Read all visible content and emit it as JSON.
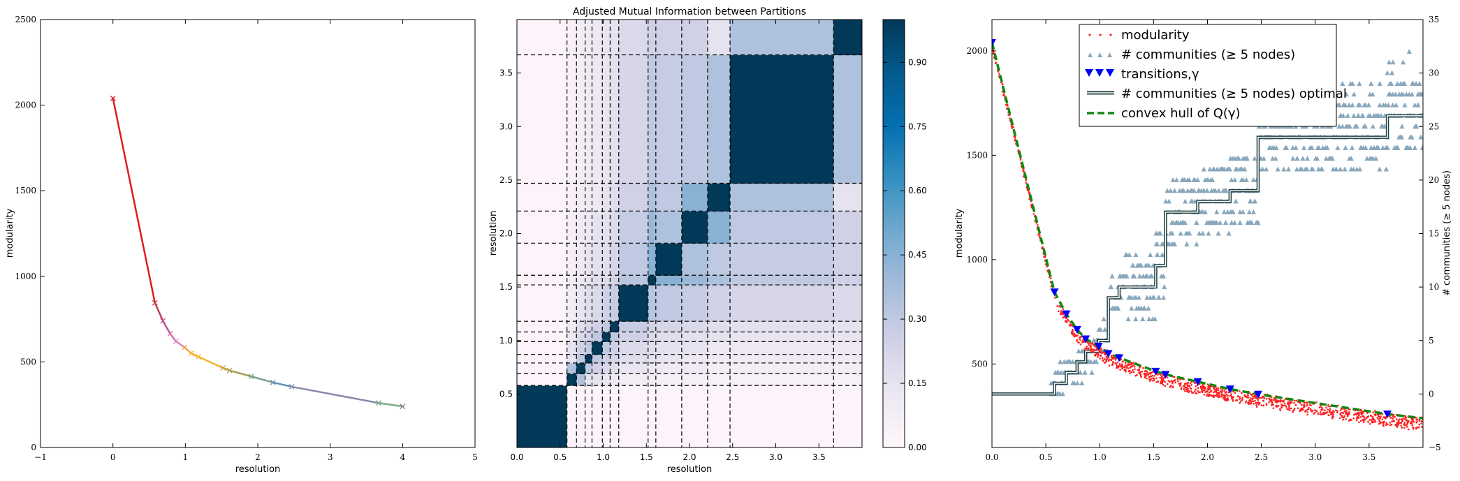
{
  "chart_data": [
    {
      "type": "line",
      "xlabel": "resolution",
      "ylabel": "modularity",
      "xlim": [
        -1,
        5
      ],
      "ylim": [
        0,
        2500
      ],
      "xticks": [
        "−1",
        "0",
        "1",
        "2",
        "3",
        "4",
        "5"
      ],
      "yticks": [
        "0",
        "500",
        "1000",
        "1500",
        "2000",
        "2500"
      ],
      "grid": false,
      "points": [
        {
          "x": 0.0,
          "y": 2040
        },
        {
          "x": 0.58,
          "y": 845
        },
        {
          "x": 0.69,
          "y": 740
        },
        {
          "x": 0.79,
          "y": 665
        },
        {
          "x": 0.87,
          "y": 620
        },
        {
          "x": 0.99,
          "y": 585
        },
        {
          "x": 1.08,
          "y": 550
        },
        {
          "x": 1.18,
          "y": 530
        },
        {
          "x": 1.52,
          "y": 465
        },
        {
          "x": 1.61,
          "y": 450
        },
        {
          "x": 1.91,
          "y": 415
        },
        {
          "x": 2.21,
          "y": 380
        },
        {
          "x": 2.47,
          "y": 355
        },
        {
          "x": 3.67,
          "y": 260
        },
        {
          "x": 4.0,
          "y": 240
        }
      ],
      "colors": [
        "#e41a1c",
        "#c43d5a",
        "#b5548f",
        "#d46fb2",
        "#e284c0",
        "#f1a23d",
        "#ffb02b",
        "#f0b431",
        "#c9a14a",
        "#a99b56",
        "#7f9e8a",
        "#5e8fb0",
        "#8a88a8",
        "#7aab84",
        "#8e6f8c"
      ]
    },
    {
      "type": "heatmap",
      "title": "Adjusted Mutual Information between Partitions",
      "xlabel": "resolution",
      "ylabel": "resolution",
      "xlim": [
        0,
        4
      ],
      "ylim": [
        0,
        4
      ],
      "xticks": [
        "0.0",
        "0.5",
        "1.0",
        "1.5",
        "2.0",
        "2.5",
        "3.0",
        "3.5"
      ],
      "yticks": [
        "0.5",
        "1.0",
        "1.5",
        "2.0",
        "2.5",
        "3.0",
        "3.5"
      ],
      "colorbar_ticks": [
        "0.00",
        "0.15",
        "0.30",
        "0.45",
        "0.60",
        "0.75",
        "0.90"
      ],
      "colorbar_range": [
        0,
        1
      ],
      "boundaries": [
        0,
        0.58,
        0.69,
        0.79,
        0.87,
        0.99,
        1.08,
        1.18,
        1.52,
        1.61,
        1.91,
        2.21,
        2.47,
        3.67,
        4.0
      ],
      "dashed_lines": [
        0.58,
        0.69,
        0.79,
        0.87,
        0.99,
        1.08,
        1.18,
        1.52,
        1.61,
        1.91,
        2.21,
        2.47,
        3.67
      ],
      "matrix": [
        [
          1.0,
          0.02,
          0.02,
          0.02,
          0.02,
          0.02,
          0.02,
          0.02,
          0.02,
          0.02,
          0.02,
          0.02,
          0.02,
          0.02
        ],
        [
          0.02,
          1.0,
          0.35,
          0.15,
          0.15,
          0.12,
          0.1,
          0.08,
          0.08,
          0.06,
          0.06,
          0.05,
          0.05,
          0.05
        ],
        [
          0.02,
          0.35,
          1.0,
          0.3,
          0.25,
          0.2,
          0.18,
          0.14,
          0.12,
          0.1,
          0.1,
          0.08,
          0.08,
          0.08
        ],
        [
          0.02,
          0.15,
          0.3,
          1.0,
          0.3,
          0.25,
          0.22,
          0.18,
          0.15,
          0.14,
          0.12,
          0.1,
          0.1,
          0.1
        ],
        [
          0.02,
          0.15,
          0.25,
          0.3,
          1.0,
          0.3,
          0.25,
          0.2,
          0.18,
          0.16,
          0.15,
          0.12,
          0.12,
          0.12
        ],
        [
          0.02,
          0.12,
          0.2,
          0.25,
          0.3,
          1.0,
          0.3,
          0.25,
          0.2,
          0.18,
          0.16,
          0.15,
          0.14,
          0.14
        ],
        [
          0.02,
          0.1,
          0.18,
          0.22,
          0.25,
          0.3,
          1.0,
          0.28,
          0.24,
          0.22,
          0.2,
          0.18,
          0.16,
          0.15
        ],
        [
          0.02,
          0.08,
          0.14,
          0.18,
          0.2,
          0.25,
          0.28,
          1.0,
          0.32,
          0.3,
          0.28,
          0.25,
          0.22,
          0.2
        ],
        [
          0.02,
          0.08,
          0.12,
          0.15,
          0.18,
          0.2,
          0.24,
          0.32,
          1.0,
          0.45,
          0.4,
          0.35,
          0.3,
          0.25
        ],
        [
          0.02,
          0.06,
          0.1,
          0.14,
          0.16,
          0.18,
          0.22,
          0.3,
          0.45,
          1.0,
          0.35,
          0.3,
          0.28,
          0.25
        ],
        [
          0.02,
          0.06,
          0.1,
          0.12,
          0.15,
          0.16,
          0.2,
          0.28,
          0.4,
          0.35,
          1.0,
          0.45,
          0.3,
          0.25
        ],
        [
          0.02,
          0.05,
          0.08,
          0.1,
          0.12,
          0.15,
          0.18,
          0.25,
          0.35,
          0.3,
          0.45,
          1.0,
          0.35,
          0.15
        ],
        [
          0.02,
          0.05,
          0.08,
          0.1,
          0.12,
          0.14,
          0.16,
          0.22,
          0.3,
          0.28,
          0.3,
          0.35,
          1.0,
          0.35
        ],
        [
          0.02,
          0.05,
          0.08,
          0.1,
          0.12,
          0.14,
          0.15,
          0.2,
          0.25,
          0.25,
          0.25,
          0.15,
          0.35,
          1.0
        ]
      ]
    },
    {
      "type": "scatter",
      "xlabel": "",
      "ylabel": "modularity",
      "ylabel_right": "# communities (≥ 5 nodes)",
      "xlim": [
        0,
        4
      ],
      "ylim": [
        100,
        2150
      ],
      "ylim_right": [
        -5,
        35
      ],
      "xticks": [
        "0.0",
        "0.5",
        "1.0",
        "1.5",
        "2.0",
        "2.5",
        "3.0",
        "3.5"
      ],
      "yticks": [
        "500",
        "1000",
        "1500",
        "2000"
      ],
      "yticks_right": [
        "−5",
        "0",
        "5",
        "10",
        "15",
        "20",
        "25",
        "30",
        "35"
      ],
      "legend_position": "top-center",
      "legend": [
        {
          "label": "modularity",
          "color": "#ff2020",
          "marker": "dots"
        },
        {
          "label": "# communities (≥ 5 nodes)",
          "color": "#8aa8bd",
          "marker": "triangle-up"
        },
        {
          "label": "transitions,γ",
          "color": "#0000ff",
          "marker": "triangle-down"
        },
        {
          "label": "# communities (≥ 5 nodes) optimal",
          "color": "#1f3f3f",
          "marker": "double-line"
        },
        {
          "label": "convex hull of Q(γ)",
          "color": "#118811",
          "marker": "dashed"
        }
      ],
      "hull": [
        {
          "x": 0.0,
          "y": 2040
        },
        {
          "x": 0.58,
          "y": 845
        },
        {
          "x": 0.69,
          "y": 740
        },
        {
          "x": 0.79,
          "y": 665
        },
        {
          "x": 0.87,
          "y": 620
        },
        {
          "x": 0.99,
          "y": 585
        },
        {
          "x": 1.08,
          "y": 550
        },
        {
          "x": 1.18,
          "y": 530
        },
        {
          "x": 1.52,
          "y": 465
        },
        {
          "x": 1.61,
          "y": 450
        },
        {
          "x": 1.91,
          "y": 415
        },
        {
          "x": 2.21,
          "y": 380
        },
        {
          "x": 2.47,
          "y": 355
        },
        {
          "x": 3.67,
          "y": 260
        },
        {
          "x": 4.0,
          "y": 240
        }
      ],
      "transitions": [
        0.0,
        0.58,
        0.69,
        0.79,
        0.87,
        0.99,
        1.08,
        1.18,
        1.52,
        1.61,
        1.91,
        2.21,
        2.47,
        3.67
      ],
      "optimal_steps": [
        {
          "x0": 0.0,
          "x1": 0.58,
          "n": 0
        },
        {
          "x0": 0.58,
          "x1": 0.69,
          "n": 1
        },
        {
          "x0": 0.69,
          "x1": 0.79,
          "n": 2
        },
        {
          "x0": 0.79,
          "x1": 0.87,
          "n": 3
        },
        {
          "x0": 0.87,
          "x1": 0.99,
          "n": 4
        },
        {
          "x0": 0.99,
          "x1": 1.08,
          "n": 5
        },
        {
          "x0": 1.08,
          "x1": 1.18,
          "n": 9
        },
        {
          "x0": 1.18,
          "x1": 1.52,
          "n": 10
        },
        {
          "x0": 1.52,
          "x1": 1.61,
          "n": 12
        },
        {
          "x0": 1.61,
          "x1": 1.91,
          "n": 17
        },
        {
          "x0": 1.91,
          "x1": 2.21,
          "n": 18
        },
        {
          "x0": 2.21,
          "x1": 2.47,
          "n": 19
        },
        {
          "x0": 2.47,
          "x1": 3.67,
          "n": 24
        },
        {
          "x0": 3.67,
          "x1": 4.0,
          "n": 26
        }
      ]
    }
  ]
}
